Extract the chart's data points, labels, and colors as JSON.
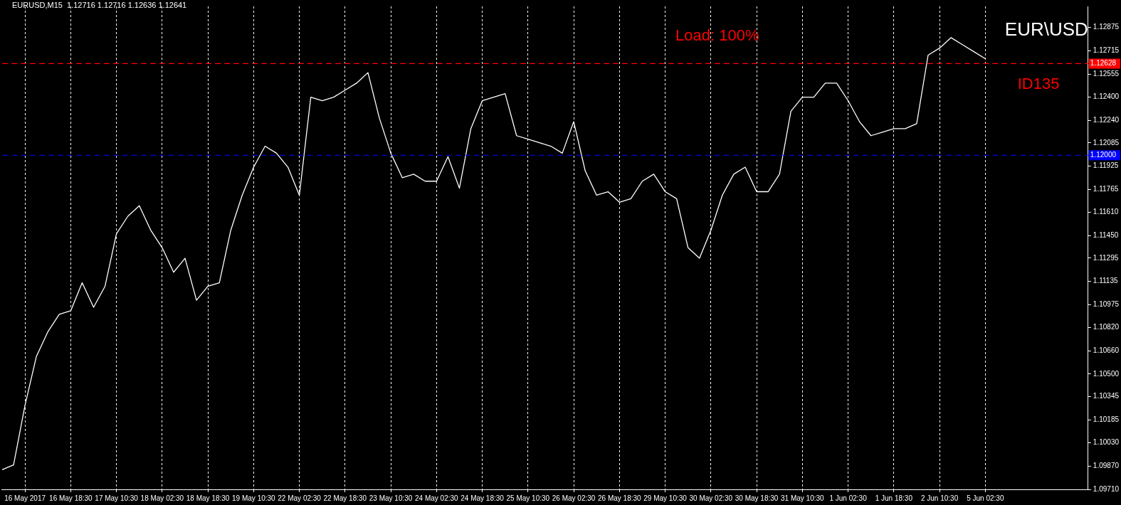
{
  "chart_data": {
    "type": "line",
    "title": "EURUSD,M15  1.12716 1.12716 1.12636 1.12641",
    "categories": [
      null,
      null,
      "16 May 2017",
      null,
      null,
      null,
      "16 May 18:30",
      null,
      null,
      null,
      "17 May 10:30",
      null,
      null,
      null,
      "18 May 02:30",
      null,
      null,
      null,
      "18 May 18:30",
      null,
      null,
      null,
      "19 May 10:30",
      null,
      null,
      null,
      "22 May 02:30",
      null,
      null,
      null,
      "22 May 18:30",
      null,
      null,
      null,
      "23 May 10:30",
      null,
      null,
      null,
      "24 May 02:30",
      null,
      null,
      null,
      "24 May 18:30",
      null,
      null,
      null,
      "25 May 10:30",
      null,
      null,
      null,
      "26 May 02:30",
      null,
      null,
      null,
      "26 May 18:30",
      null,
      null,
      null,
      "29 May 10:30",
      null,
      null,
      null,
      "30 May 02:30",
      null,
      null,
      null,
      "30 May 18:30",
      null,
      null,
      null,
      "31 May 10:30",
      null,
      null,
      null,
      "1 Jun 02:30",
      null,
      null,
      null,
      "1 Jun 18:30",
      null,
      null,
      null,
      "2 Jun 10:30",
      null,
      null,
      null,
      "5 Jun 02:30",
      null,
      null,
      null,
      null,
      null,
      null,
      null,
      null,
      null
    ],
    "series": [
      {
        "color": "#ffffff",
        "values": [
          1.09845,
          1.09878,
          1.10286,
          1.10622,
          1.1079,
          1.1091,
          1.10934,
          1.11126,
          1.10958,
          1.11102,
          1.11462,
          1.11582,
          1.11654,
          1.11486,
          1.11366,
          1.11198,
          1.11294,
          1.11006,
          1.11102,
          1.11126,
          1.11486,
          1.11726,
          1.11918,
          1.12062,
          1.12014,
          1.11918,
          1.11726,
          1.12398,
          1.12374,
          1.12398,
          1.12446,
          1.12494,
          1.12566,
          1.12254,
          1.12014,
          1.11846,
          1.1187,
          1.11822,
          1.11822,
          1.1199,
          1.11774,
          1.12182,
          1.12374,
          1.12398,
          1.12422,
          1.12134,
          1.1211,
          1.12086,
          1.12062,
          1.12014,
          1.1223,
          1.11894,
          1.11726,
          1.1175,
          1.11678,
          1.11702,
          1.11822,
          1.1187,
          1.1175,
          1.11702,
          1.11366,
          1.11294,
          1.11486,
          1.11726,
          1.1187,
          1.11918,
          1.1175,
          1.1175,
          1.1187,
          1.12302,
          1.12398,
          1.12398,
          1.12494,
          1.12494,
          1.12374,
          1.1223,
          1.12134,
          1.12158,
          1.12182,
          1.12182,
          1.12216,
          1.12686,
          1.12734,
          1.12806,
          1.12758,
          1.1271,
          1.12662,
          null,
          null,
          null,
          null,
          null,
          null,
          null,
          null,
          null
        ]
      }
    ],
    "ylim": [
      1.0971,
      1.1302
    ],
    "yticks": [
      {
        "value": 1.12875,
        "label": "1.12875"
      },
      {
        "value": 1.12715,
        "label": "1.12715"
      },
      {
        "value": 1.12555,
        "label": "1.12555"
      },
      {
        "value": 1.124,
        "label": "1.12400"
      },
      {
        "value": 1.1224,
        "label": "1.12240"
      },
      {
        "value": 1.12085,
        "label": "1.12085"
      },
      {
        "value": 1.11925,
        "label": "1.11925"
      },
      {
        "value": 1.11765,
        "label": "1.11765"
      },
      {
        "value": 1.1161,
        "label": "1.11610"
      },
      {
        "value": 1.1145,
        "label": "1.11450"
      },
      {
        "value": 1.11295,
        "label": "1.11295"
      },
      {
        "value": 1.11135,
        "label": "1.11135"
      },
      {
        "value": 1.10975,
        "label": "1.10975"
      },
      {
        "value": 1.1082,
        "label": "1.10820"
      },
      {
        "value": 1.1066,
        "label": "1.10660"
      },
      {
        "value": 1.105,
        "label": "1.10500"
      },
      {
        "value": 1.10345,
        "label": "1.10345"
      },
      {
        "value": 1.10185,
        "label": "1.10185"
      },
      {
        "value": 1.1003,
        "label": "1.10030"
      },
      {
        "value": 1.0987,
        "label": "1.09870"
      },
      {
        "value": 1.0971,
        "label": "1.09710"
      }
    ],
    "ref_lines": [
      {
        "axis": "y",
        "value": 1.12628,
        "label": "1.12628",
        "color": "#ff0000",
        "line_style": "dashed"
      },
      {
        "axis": "y",
        "value": 1.12,
        "label": "1.12000",
        "color": "#0000ff",
        "line_style": "dashed"
      }
    ],
    "annotations": [
      "Load: 100%",
      "EUR\\USD",
      "ID135"
    ],
    "grid": "x",
    "marker": "none",
    "line_style": "solid"
  }
}
